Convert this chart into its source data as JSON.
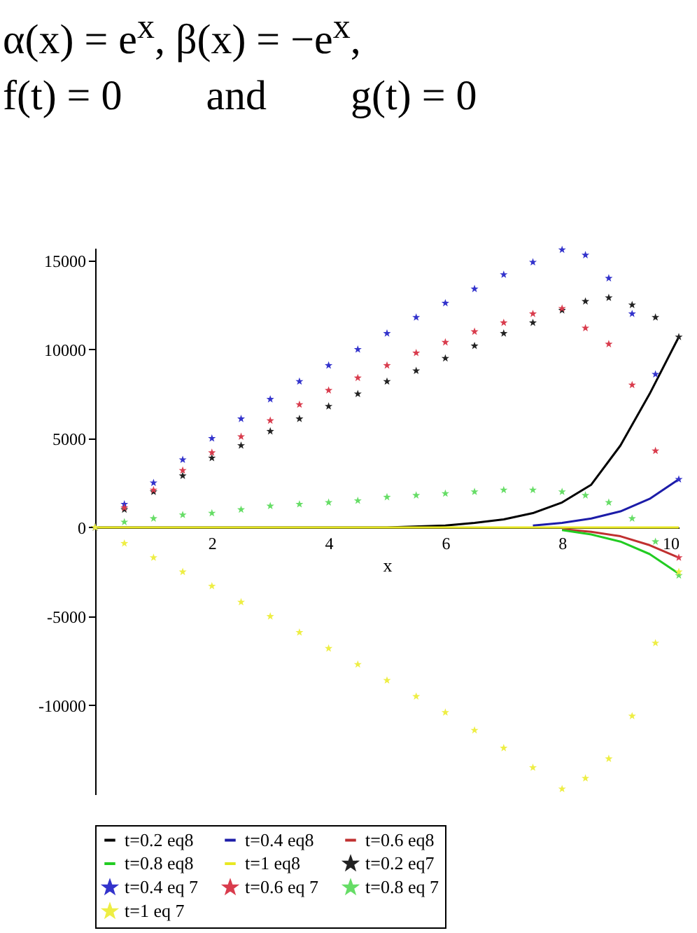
{
  "chart_data": {
    "type": "line",
    "annotations": [
      "α(x) = e$^{x}$, β(x) = −e$^{x}$,",
      "f(t) = 0        and        g(t) = 0"
    ],
    "xlabel": "x",
    "xlim": [
      0,
      10
    ],
    "xticks": [
      2,
      4,
      6,
      8,
      10
    ],
    "ylim": [
      -15000,
      15700
    ],
    "yticks": [
      -10000,
      -5000,
      0,
      5000,
      10000,
      15000
    ],
    "grid": false,
    "legend": "bottom",
    "line_style": "solid",
    "series": [
      {
        "name": "t=0.2 eq8",
        "type": "line",
        "color": "#000000",
        "x": [
          0,
          1,
          2,
          3,
          4,
          5,
          6,
          6.5,
          7,
          7.5,
          8,
          8.5,
          9,
          9.5,
          10
        ],
        "values": [
          0,
          0,
          0,
          0,
          0,
          0,
          100,
          250,
          450,
          800,
          1400,
          2400,
          4600,
          7500,
          10700
        ]
      },
      {
        "name": "t=0.4 eq8",
        "type": "line",
        "color": "#1c1ca8",
        "x": [
          7.5,
          8,
          8.5,
          9,
          9.5,
          10
        ],
        "values": [
          100,
          250,
          500,
          900,
          1600,
          2700
        ]
      },
      {
        "name": "t=0.6 eq8",
        "type": "line",
        "color": "#c03030",
        "x": [
          8,
          8.5,
          9,
          9.5,
          10
        ],
        "values": [
          -100,
          -250,
          -500,
          -1000,
          -1700
        ]
      },
      {
        "name": "t=0.8 eq8",
        "type": "line",
        "color": "#22cc22",
        "x": [
          8,
          8.5,
          9,
          9.5,
          10
        ],
        "values": [
          -150,
          -400,
          -800,
          -1500,
          -2600
        ]
      },
      {
        "name": "t=1 eq8",
        "type": "line",
        "color": "#e8e822",
        "x": [
          0,
          1,
          2,
          3,
          4,
          5,
          6,
          6.5,
          7,
          7.5,
          8,
          8.5,
          9,
          9.5,
          10
        ],
        "values": [
          0,
          0,
          0,
          0,
          0,
          0,
          0,
          0,
          0,
          0,
          0,
          0,
          0,
          0,
          0
        ]
      },
      {
        "name": "t=0.2 eq7",
        "type": "scatter",
        "marker": "star",
        "color": "#222222",
        "x": [
          0,
          0.5,
          1,
          1.5,
          2,
          2.5,
          3,
          3.5,
          4,
          4.5,
          5,
          5.5,
          6,
          6.5,
          7,
          7.5,
          8,
          8.4,
          8.8,
          9.2,
          9.6,
          10
        ],
        "values": [
          0,
          1000,
          2000,
          2900,
          3900,
          4600,
          5400,
          6100,
          6800,
          7500,
          8200,
          8800,
          9500,
          10200,
          10900,
          11500,
          12200,
          12700,
          12900,
          12500,
          11800,
          10700
        ]
      },
      {
        "name": "t=0.4 eq 7",
        "type": "scatter",
        "marker": "star",
        "color": "#3333cc",
        "x": [
          0,
          0.5,
          1,
          1.5,
          2,
          2.5,
          3,
          3.5,
          4,
          4.5,
          5,
          5.5,
          6,
          6.5,
          7,
          7.5,
          8,
          8.4,
          8.8,
          9.2,
          9.6,
          10
        ],
        "values": [
          0,
          1300,
          2500,
          3800,
          5000,
          6100,
          7200,
          8200,
          9100,
          10000,
          10900,
          11800,
          12600,
          13400,
          14200,
          14900,
          15600,
          15300,
          14000,
          12000,
          8600,
          2700
        ]
      },
      {
        "name": "t=0.6 eq 7",
        "type": "scatter",
        "marker": "star",
        "color": "#d93c4d",
        "x": [
          0,
          0.5,
          1,
          1.5,
          2,
          2.5,
          3,
          3.5,
          4,
          4.5,
          5,
          5.5,
          6,
          6.5,
          7,
          7.5,
          8,
          8.4,
          8.8,
          9.2,
          9.6,
          10
        ],
        "values": [
          0,
          1100,
          2100,
          3200,
          4200,
          5100,
          6000,
          6900,
          7700,
          8400,
          9100,
          9800,
          10400,
          11000,
          11500,
          12000,
          12300,
          11200,
          10300,
          8000,
          4300,
          -1700
        ]
      },
      {
        "name": "t=0.8 eq 7",
        "type": "scatter",
        "marker": "star",
        "color": "#66dd66",
        "x": [
          0,
          0.5,
          1,
          1.5,
          2,
          2.5,
          3,
          3.5,
          4,
          4.5,
          5,
          5.5,
          6,
          6.5,
          7,
          7.5,
          8,
          8.4,
          8.8,
          9.2,
          9.6,
          10
        ],
        "values": [
          0,
          300,
          500,
          700,
          800,
          1000,
          1200,
          1300,
          1400,
          1500,
          1700,
          1800,
          1900,
          2000,
          2100,
          2100,
          2000,
          1800,
          1400,
          500,
          -800,
          -2700
        ]
      },
      {
        "name": "t=1 eq 7",
        "type": "scatter",
        "marker": "star",
        "color": "#eeee44",
        "x": [
          0,
          0.5,
          1,
          1.5,
          2,
          2.5,
          3,
          3.5,
          4,
          4.5,
          5,
          5.5,
          6,
          6.5,
          7,
          7.5,
          8,
          8.4,
          8.8,
          9.2,
          9.6,
          10
        ],
        "values": [
          0,
          -900,
          -1700,
          -2500,
          -3300,
          -4200,
          -5000,
          -5900,
          -6800,
          -7700,
          -8600,
          -9500,
          -10400,
          -11400,
          -12400,
          -13500,
          -14700,
          -14100,
          -13000,
          -10600,
          -6500,
          -2500
        ]
      }
    ]
  }
}
